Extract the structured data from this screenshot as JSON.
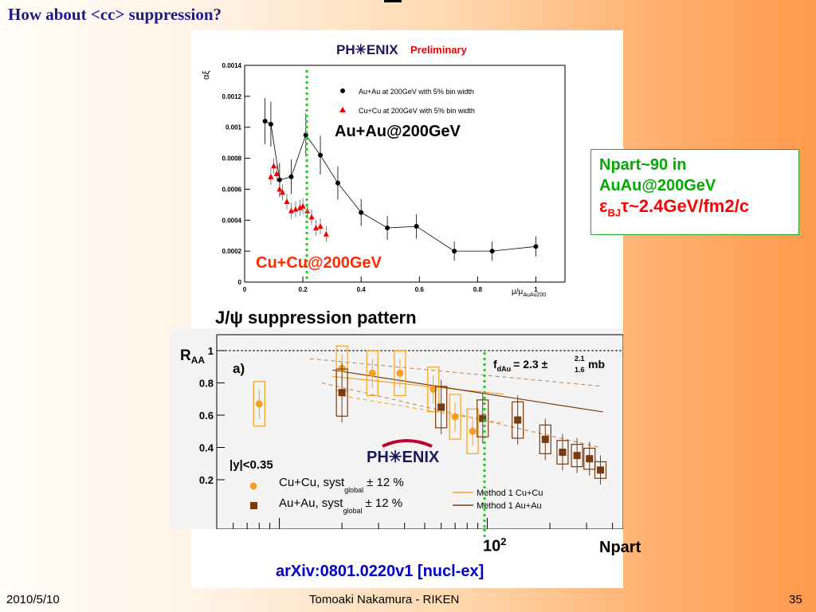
{
  "slide": {
    "title": "How about <cc> suppression?",
    "footer_date": "2010/5/10",
    "footer_author": "Tomoaki Nakamura - RIKEN",
    "page_number": "35"
  },
  "top_plot": {
    "logo": "PH✳ENIX",
    "logo_tag": "Preliminary",
    "ylabel": "αξ",
    "xlabel": "μ/μ",
    "xlabel_sub": "AuAu200",
    "yticks": [
      "0.0014",
      "0.0012",
      "0.001",
      "0.0008",
      "0.0006",
      "0.0004",
      "0.0002",
      "0"
    ],
    "xticks": [
      "0",
      "0.2",
      "0.4",
      "0.6",
      "0.8",
      "1"
    ],
    "legend_auau": "Au+Au at 200GeV with 5% bin width",
    "legend_cucu": "Cu+Cu at 200GeV with 5% bin width",
    "label_auau": "Au+Au@200GeV",
    "label_cucu": "Cu+Cu@200GeV"
  },
  "section_title": "J/ψ suppression pattern",
  "bottom_plot": {
    "ylabel": "R",
    "ylabel_sub": "AA",
    "panel_label": "a)",
    "yticks": [
      "1",
      "0.8",
      "0.6",
      "0.4",
      "0.2"
    ],
    "fdau_label": "f",
    "fdau_sub": "dAu",
    "fdau_value": "= 2.3 ±",
    "fdau_up": "2.1",
    "fdau_down": "1.6",
    "fdau_unit": "mb",
    "logo": "PH✳ENIX",
    "rapidity_cut": "|y|<0.35",
    "legend_cucu": "Cu+Cu, syst",
    "legend_cucu_err": "± 12 %",
    "legend_auau": "Au+Au, syst",
    "legend_auau_err": "± 12 %",
    "legend_sub": "global",
    "method_cucu": "Method 1 Cu+Cu",
    "method_auau": "Method 1 Au+Au",
    "xtick_label_base": "10",
    "xtick_label_exp": "2",
    "xlabel": "Npart"
  },
  "info_box": {
    "line1": "Npart~90 in",
    "line2": "AuAu@200GeV",
    "line3_eps": "ε",
    "line3_sub": "BJ",
    "line3_rest": "τ~2.4GeV/fm2/c"
  },
  "reference": "arXiv:0801.0220v1 [nucl-ex]",
  "chart_data": [
    {
      "type": "scatter",
      "xlabel": "μ/μAuAu200",
      "ylabel": "αξ",
      "xlim": [
        0,
        1.1
      ],
      "ylim": [
        0,
        0.0014
      ],
      "series": [
        {
          "name": "Au+Au at 200GeV with 5% bin width",
          "color": "#000000",
          "x": [
            0.07,
            0.09,
            0.12,
            0.16,
            0.21,
            0.26,
            0.32,
            0.4,
            0.49,
            0.59,
            0.72,
            0.85,
            1.0
          ],
          "y": [
            0.00104,
            0.00102,
            0.00066,
            0.00068,
            0.00095,
            0.00082,
            0.00064,
            0.00045,
            0.00035,
            0.00036,
            0.0002,
            0.0002,
            0.00023
          ]
        },
        {
          "name": "Cu+Cu at 200GeV with 5% bin width",
          "color": "#ee0000",
          "x": [
            0.09,
            0.1,
            0.11,
            0.12,
            0.13,
            0.145,
            0.16,
            0.175,
            0.19,
            0.2,
            0.215,
            0.23,
            0.245,
            0.26,
            0.28
          ],
          "y": [
            0.00068,
            0.00075,
            0.0007,
            0.0006,
            0.00058,
            0.00052,
            0.00046,
            0.00047,
            0.00048,
            0.00049,
            0.00046,
            0.00042,
            0.00035,
            0.00036,
            0.00031
          ]
        }
      ]
    },
    {
      "type": "scatter",
      "xlabel": "Npart",
      "ylabel": "RAA",
      "xlog": true,
      "xlim": [
        5,
        450
      ],
      "ylim": [
        0.1,
        1.05
      ],
      "series": [
        {
          "name": "Cu+Cu, syst global ± 12 %",
          "color": "#f5a020",
          "x": [
            8,
            20,
            28,
            38,
            55,
            70,
            85
          ],
          "y": [
            0.67,
            0.89,
            0.86,
            0.86,
            0.76,
            0.59,
            0.5
          ]
        },
        {
          "name": "Au+Au, syst global ± 12 %",
          "color": "#7a3a10",
          "x": [
            20,
            60,
            95,
            140,
            190,
            230,
            270,
            310,
            350
          ],
          "y": [
            0.74,
            0.65,
            0.58,
            0.57,
            0.45,
            0.37,
            0.35,
            0.33,
            0.26
          ]
        }
      ]
    }
  ]
}
